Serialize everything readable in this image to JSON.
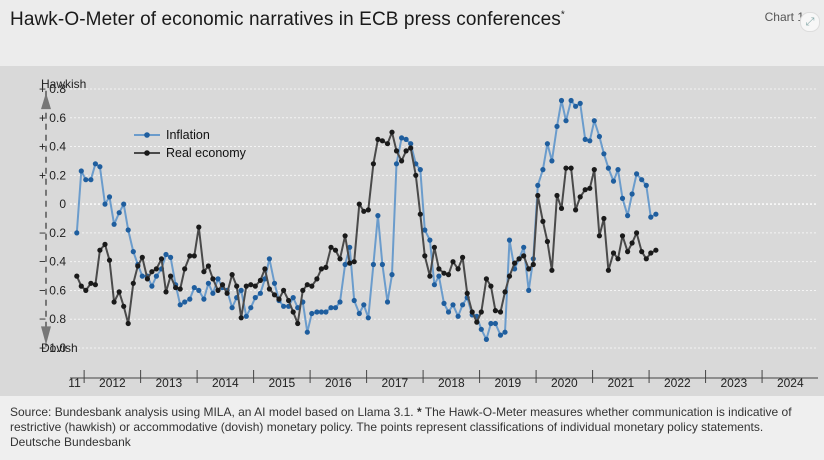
{
  "header": {
    "title": "Hawk-O-Meter of economic narratives in ECB press conferences",
    "title_mark": "*",
    "chart_label": "Chart 1"
  },
  "footer": {
    "source": "Source: Bundesbank analysis using MILA, an AI model based on Llama 3.1.",
    "star": "*",
    "note": "The Hawk-O-Meter measures whether communication is indicative of restrictive (hawkish) or accommodative (dovish) monetary policy. The points represent classifications of individual monetary policy statements.",
    "publisher": "Deutsche Bundesbank"
  },
  "colors": {
    "inflation": "#6b9ccc",
    "inflation_marker": "#1f5e9e",
    "real_economy": "#4a4a4a",
    "real_economy_marker": "#1a1a1a",
    "panel": "#d9d9d9"
  },
  "chart_data": {
    "type": "line",
    "title": "Hawk-O-Meter of economic narratives in ECB press conferences",
    "ylim": [
      -1.0,
      0.8
    ],
    "yticks": [
      0.8,
      0.6,
      0.4,
      0.2,
      0,
      -0.2,
      -0.4,
      -0.6,
      -0.8,
      -1.0
    ],
    "ytick_labels": [
      "+ 0.8",
      "+ 0.6",
      "+ 0.4",
      "+ 0.2",
      "0",
      "− 0.2",
      "− 0.4",
      "− 0.6",
      "− 0.8",
      "− 1.0"
    ],
    "axis_annotations": {
      "top": "Hawkish",
      "bottom": "Dovish"
    },
    "xlim": [
      2011.75,
      2024.99
    ],
    "x_labels": [
      {
        "label": "11",
        "pos": 2011.83
      },
      {
        "label": "2012",
        "pos": 2012.5
      },
      {
        "label": "2013",
        "pos": 2013.5
      },
      {
        "label": "2014",
        "pos": 2014.5
      },
      {
        "label": "2015",
        "pos": 2015.5
      },
      {
        "label": "2016",
        "pos": 2016.5
      },
      {
        "label": "2017",
        "pos": 2017.5
      },
      {
        "label": "2018",
        "pos": 2018.5
      },
      {
        "label": "2019",
        "pos": 2019.5
      },
      {
        "label": "2020",
        "pos": 2020.5
      },
      {
        "label": "2021",
        "pos": 2021.5
      },
      {
        "label": "2022",
        "pos": 2022.5
      },
      {
        "label": "2023",
        "pos": 2023.5
      },
      {
        "label": "2024",
        "pos": 2024.5
      }
    ],
    "year_ticks": [
      2012,
      2013,
      2014,
      2015,
      2016,
      2017,
      2018,
      2019,
      2020,
      2021,
      2022,
      2023,
      2024
    ],
    "legend": {
      "placement": "top-left",
      "entries": [
        "Inflation",
        "Real economy"
      ]
    },
    "series": [
      {
        "name": "Inflation",
        "points": [
          [
            2011.87,
            -0.2
          ],
          [
            2011.95,
            0.23
          ],
          [
            2012.03,
            0.17
          ],
          [
            2012.12,
            0.17
          ],
          [
            2012.2,
            0.28
          ],
          [
            2012.28,
            0.26
          ],
          [
            2012.37,
            0.0
          ],
          [
            2012.45,
            0.05
          ],
          [
            2012.53,
            -0.14
          ],
          [
            2012.62,
            -0.06
          ],
          [
            2012.7,
            0.0
          ],
          [
            2012.78,
            -0.18
          ],
          [
            2012.87,
            -0.33
          ],
          [
            2012.95,
            -0.42
          ],
          [
            2013.03,
            -0.5
          ],
          [
            2013.12,
            -0.5
          ],
          [
            2013.2,
            -0.57
          ],
          [
            2013.28,
            -0.5
          ],
          [
            2013.37,
            -0.45
          ],
          [
            2013.45,
            -0.35
          ],
          [
            2013.53,
            -0.37
          ],
          [
            2013.62,
            -0.56
          ],
          [
            2013.7,
            -0.7
          ],
          [
            2013.78,
            -0.68
          ],
          [
            2013.87,
            -0.66
          ],
          [
            2013.95,
            -0.58
          ],
          [
            2014.03,
            -0.6
          ],
          [
            2014.12,
            -0.66
          ],
          [
            2014.2,
            -0.55
          ],
          [
            2014.28,
            -0.62
          ],
          [
            2014.37,
            -0.52
          ],
          [
            2014.45,
            -0.58
          ],
          [
            2014.53,
            -0.6
          ],
          [
            2014.62,
            -0.72
          ],
          [
            2014.7,
            -0.65
          ],
          [
            2014.78,
            -0.6
          ],
          [
            2014.87,
            -0.78
          ],
          [
            2014.95,
            -0.72
          ],
          [
            2015.03,
            -0.65
          ],
          [
            2015.12,
            -0.62
          ],
          [
            2015.2,
            -0.52
          ],
          [
            2015.28,
            -0.38
          ],
          [
            2015.37,
            -0.55
          ],
          [
            2015.45,
            -0.67
          ],
          [
            2015.53,
            -0.71
          ],
          [
            2015.62,
            -0.71
          ],
          [
            2015.7,
            -0.65
          ],
          [
            2015.78,
            -0.72
          ],
          [
            2015.87,
            -0.68
          ],
          [
            2015.95,
            -0.89
          ],
          [
            2016.03,
            -0.76
          ],
          [
            2016.12,
            -0.75
          ],
          [
            2016.2,
            -0.75
          ],
          [
            2016.28,
            -0.75
          ],
          [
            2016.37,
            -0.72
          ],
          [
            2016.45,
            -0.72
          ],
          [
            2016.53,
            -0.68
          ],
          [
            2016.62,
            -0.42
          ],
          [
            2016.7,
            -0.3
          ],
          [
            2016.78,
            -0.67
          ],
          [
            2016.87,
            -0.76
          ],
          [
            2016.95,
            -0.7
          ],
          [
            2017.03,
            -0.79
          ],
          [
            2017.12,
            -0.42
          ],
          [
            2017.2,
            -0.08
          ],
          [
            2017.28,
            -0.42
          ],
          [
            2017.37,
            -0.68
          ],
          [
            2017.45,
            -0.49
          ],
          [
            2017.53,
            0.28
          ],
          [
            2017.62,
            0.46
          ],
          [
            2017.7,
            0.45
          ],
          [
            2017.78,
            0.42
          ],
          [
            2017.87,
            0.28
          ],
          [
            2017.95,
            0.24
          ],
          [
            2018.03,
            -0.18
          ],
          [
            2018.12,
            -0.25
          ],
          [
            2018.2,
            -0.56
          ],
          [
            2018.28,
            -0.5
          ],
          [
            2018.37,
            -0.69
          ],
          [
            2018.45,
            -0.75
          ],
          [
            2018.53,
            -0.7
          ],
          [
            2018.62,
            -0.78
          ],
          [
            2018.7,
            -0.7
          ],
          [
            2018.78,
            -0.65
          ],
          [
            2018.87,
            -0.77
          ],
          [
            2018.95,
            -0.78
          ],
          [
            2019.03,
            -0.87
          ],
          [
            2019.12,
            -0.94
          ],
          [
            2019.2,
            -0.83
          ],
          [
            2019.28,
            -0.83
          ],
          [
            2019.37,
            -0.91
          ],
          [
            2019.45,
            -0.89
          ],
          [
            2019.53,
            -0.25
          ],
          [
            2019.62,
            -0.45
          ],
          [
            2019.7,
            -0.38
          ],
          [
            2019.78,
            -0.3
          ],
          [
            2019.87,
            -0.6
          ],
          [
            2019.95,
            -0.38
          ],
          [
            2020.03,
            0.13
          ],
          [
            2020.12,
            0.24
          ],
          [
            2020.2,
            0.42
          ],
          [
            2020.28,
            0.3
          ],
          [
            2020.37,
            0.54
          ],
          [
            2020.45,
            0.72
          ],
          [
            2020.53,
            0.58
          ],
          [
            2020.62,
            0.72
          ],
          [
            2020.7,
            0.68
          ],
          [
            2020.78,
            0.7
          ],
          [
            2020.87,
            0.45
          ],
          [
            2020.95,
            0.44
          ],
          [
            2021.03,
            0.58
          ],
          [
            2021.12,
            0.47
          ],
          [
            2021.2,
            0.35
          ],
          [
            2021.28,
            0.25
          ],
          [
            2021.37,
            0.16
          ],
          [
            2021.45,
            0.24
          ],
          [
            2021.53,
            0.04
          ],
          [
            2021.62,
            -0.08
          ],
          [
            2021.7,
            0.07
          ],
          [
            2021.78,
            0.21
          ],
          [
            2021.87,
            0.17
          ],
          [
            2021.95,
            0.13
          ],
          [
            2022.03,
            -0.09
          ],
          [
            2022.12,
            -0.07
          ]
        ]
      },
      {
        "name": "Real economy",
        "points": [
          [
            2011.87,
            -0.5
          ],
          [
            2011.95,
            -0.57
          ],
          [
            2012.03,
            -0.6
          ],
          [
            2012.12,
            -0.55
          ],
          [
            2012.2,
            -0.56
          ],
          [
            2012.28,
            -0.32
          ],
          [
            2012.37,
            -0.28
          ],
          [
            2012.45,
            -0.39
          ],
          [
            2012.53,
            -0.68
          ],
          [
            2012.62,
            -0.61
          ],
          [
            2012.7,
            -0.71
          ],
          [
            2012.78,
            -0.83
          ],
          [
            2012.87,
            -0.55
          ],
          [
            2012.95,
            -0.43
          ],
          [
            2013.03,
            -0.37
          ],
          [
            2013.12,
            -0.52
          ],
          [
            2013.2,
            -0.47
          ],
          [
            2013.28,
            -0.45
          ],
          [
            2013.37,
            -0.38
          ],
          [
            2013.45,
            -0.61
          ],
          [
            2013.53,
            -0.5
          ],
          [
            2013.62,
            -0.58
          ],
          [
            2013.7,
            -0.59
          ],
          [
            2013.78,
            -0.45
          ],
          [
            2013.87,
            -0.36
          ],
          [
            2013.95,
            -0.36
          ],
          [
            2014.03,
            -0.16
          ],
          [
            2014.12,
            -0.47
          ],
          [
            2014.2,
            -0.43
          ],
          [
            2014.28,
            -0.52
          ],
          [
            2014.37,
            -0.6
          ],
          [
            2014.45,
            -0.56
          ],
          [
            2014.53,
            -0.62
          ],
          [
            2014.62,
            -0.49
          ],
          [
            2014.7,
            -0.57
          ],
          [
            2014.78,
            -0.79
          ],
          [
            2014.87,
            -0.57
          ],
          [
            2014.95,
            -0.56
          ],
          [
            2015.03,
            -0.57
          ],
          [
            2015.12,
            -0.53
          ],
          [
            2015.2,
            -0.45
          ],
          [
            2015.28,
            -0.59
          ],
          [
            2015.37,
            -0.63
          ],
          [
            2015.45,
            -0.66
          ],
          [
            2015.53,
            -0.6
          ],
          [
            2015.62,
            -0.67
          ],
          [
            2015.7,
            -0.75
          ],
          [
            2015.78,
            -0.83
          ],
          [
            2015.87,
            -0.6
          ],
          [
            2015.95,
            -0.56
          ],
          [
            2016.03,
            -0.57
          ],
          [
            2016.12,
            -0.52
          ],
          [
            2016.2,
            -0.45
          ],
          [
            2016.28,
            -0.44
          ],
          [
            2016.37,
            -0.3
          ],
          [
            2016.45,
            -0.32
          ],
          [
            2016.53,
            -0.38
          ],
          [
            2016.62,
            -0.22
          ],
          [
            2016.7,
            -0.41
          ],
          [
            2016.78,
            -0.4
          ],
          [
            2016.87,
            0.0
          ],
          [
            2016.95,
            -0.05
          ],
          [
            2017.03,
            -0.04
          ],
          [
            2017.12,
            0.28
          ],
          [
            2017.2,
            0.45
          ],
          [
            2017.28,
            0.44
          ],
          [
            2017.37,
            0.42
          ],
          [
            2017.45,
            0.5
          ],
          [
            2017.53,
            0.37
          ],
          [
            2017.62,
            0.3
          ],
          [
            2017.7,
            0.37
          ],
          [
            2017.78,
            0.39
          ],
          [
            2017.87,
            0.2
          ],
          [
            2017.95,
            -0.07
          ],
          [
            2018.03,
            -0.36
          ],
          [
            2018.12,
            -0.5
          ],
          [
            2018.2,
            -0.3
          ],
          [
            2018.28,
            -0.45
          ],
          [
            2018.37,
            -0.48
          ],
          [
            2018.45,
            -0.49
          ],
          [
            2018.53,
            -0.4
          ],
          [
            2018.62,
            -0.45
          ],
          [
            2018.7,
            -0.37
          ],
          [
            2018.78,
            -0.62
          ],
          [
            2018.87,
            -0.75
          ],
          [
            2018.95,
            -0.82
          ],
          [
            2019.03,
            -0.75
          ],
          [
            2019.12,
            -0.52
          ],
          [
            2019.2,
            -0.57
          ],
          [
            2019.28,
            -0.74
          ],
          [
            2019.37,
            -0.75
          ],
          [
            2019.45,
            -0.61
          ],
          [
            2019.53,
            -0.5
          ],
          [
            2019.62,
            -0.41
          ],
          [
            2019.7,
            -0.38
          ],
          [
            2019.78,
            -0.36
          ],
          [
            2019.87,
            -0.45
          ],
          [
            2019.95,
            -0.42
          ],
          [
            2020.03,
            0.06
          ],
          [
            2020.12,
            -0.12
          ],
          [
            2020.2,
            -0.26
          ],
          [
            2020.28,
            -0.46
          ],
          [
            2020.37,
            0.06
          ],
          [
            2020.45,
            -0.03
          ],
          [
            2020.53,
            0.25
          ],
          [
            2020.62,
            0.25
          ],
          [
            2020.7,
            -0.04
          ],
          [
            2020.78,
            0.05
          ],
          [
            2020.87,
            0.1
          ],
          [
            2020.95,
            0.11
          ],
          [
            2021.03,
            0.24
          ],
          [
            2021.12,
            -0.22
          ],
          [
            2021.2,
            -0.1
          ],
          [
            2021.28,
            -0.46
          ],
          [
            2021.37,
            -0.34
          ],
          [
            2021.45,
            -0.38
          ],
          [
            2021.53,
            -0.22
          ],
          [
            2021.62,
            -0.33
          ],
          [
            2021.7,
            -0.27
          ],
          [
            2021.78,
            -0.2
          ],
          [
            2021.87,
            -0.33
          ],
          [
            2021.95,
            -0.38
          ],
          [
            2022.03,
            -0.34
          ],
          [
            2022.12,
            -0.32
          ]
        ]
      }
    ]
  }
}
